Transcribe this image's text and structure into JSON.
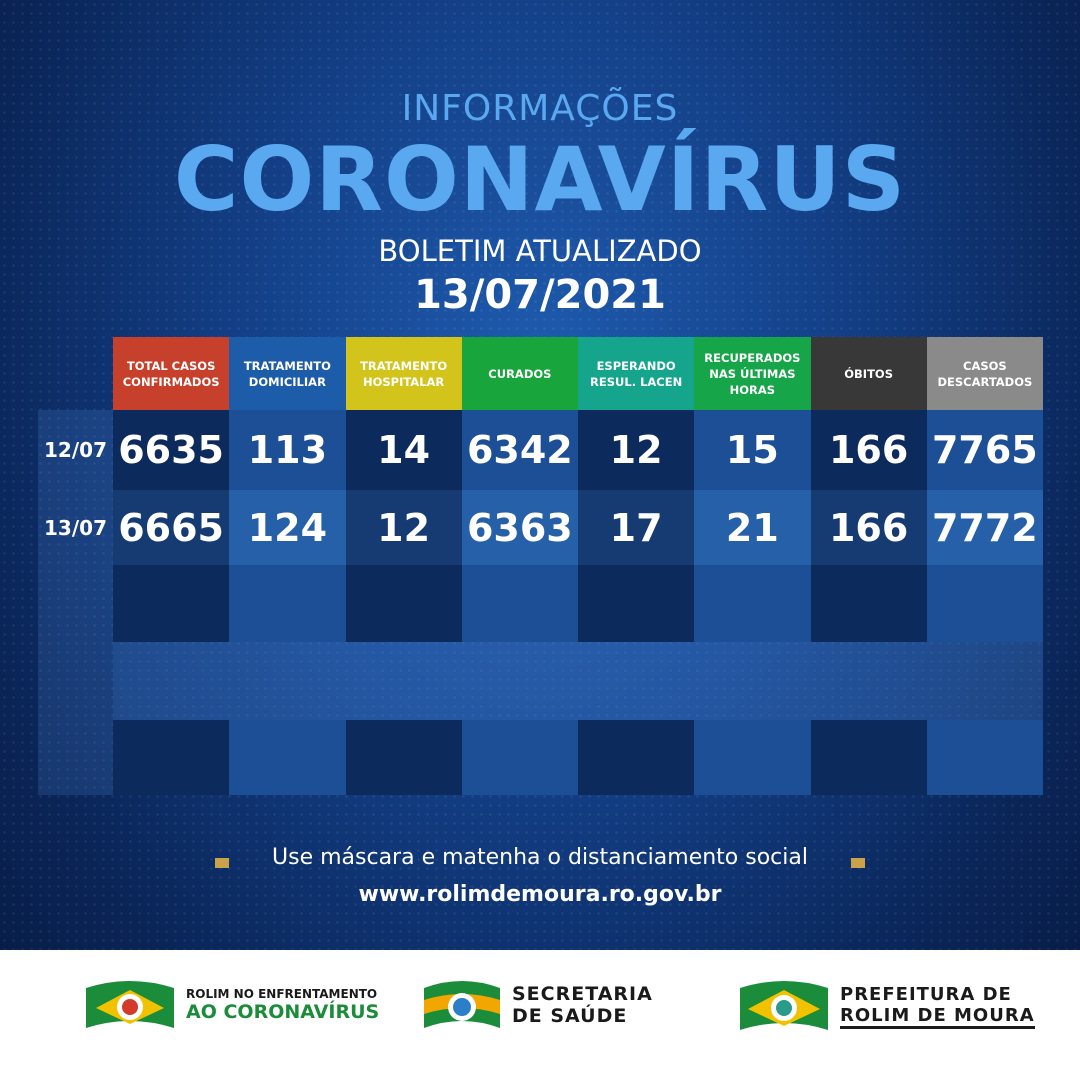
{
  "header": {
    "kicker": "INFORMAÇÕES",
    "title": "CORONAVÍRUS",
    "subtitle": "BOLETIM ATUALIZADO",
    "date": "13/07/2021"
  },
  "table": {
    "columns": [
      "TOTAL CASOS CONFIRMADOS",
      "TRATAMENTO DOMICILIAR",
      "TRATAMENTO HOSPITALAR",
      "CURADOS",
      "ESPERANDO RESUL. LACEN",
      "RECUPERADOS NAS ÚLTIMAS HORAS",
      "ÓBITOS",
      "CASOS DESCARTADOS"
    ],
    "rows": [
      {
        "date": "12/07",
        "values": [
          6635,
          113,
          14,
          6342,
          12,
          15,
          166,
          7765
        ]
      },
      {
        "date": "13/07",
        "values": [
          6665,
          124,
          12,
          6363,
          17,
          21,
          166,
          7772
        ]
      }
    ]
  },
  "footer": {
    "message": "Use máscara e matenha o distanciamento social",
    "url": "www.rolimdemoura.ro.gov.br"
  },
  "logos": [
    {
      "line1": "ROLIM NO ENFRENTAMENTO",
      "line2": "AO CORONAVÍRUS"
    },
    {
      "line1": "SECRETARIA",
      "line2": "DE SAÚDE"
    },
    {
      "line1": "PREFEITURA DE",
      "line2": "ROLIM DE MOURA"
    }
  ]
}
